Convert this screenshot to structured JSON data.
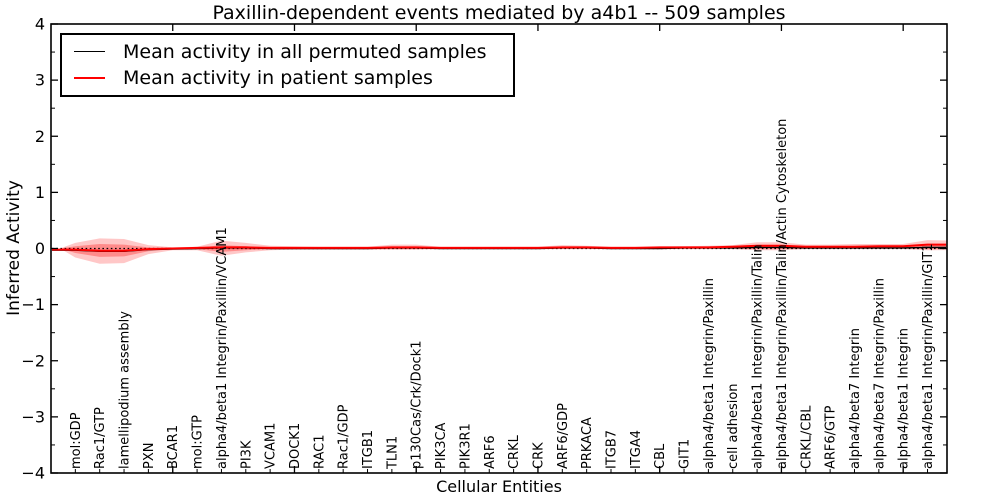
{
  "figure": {
    "background": "#ffffff"
  },
  "chart_data": {
    "type": "area",
    "variant": "violin-band-with-mean-lines",
    "title": "Paxillin-dependent events mediated by a4b1 -- 509 samples",
    "xlabel": "Cellular Entities",
    "ylabel": "Inferred Activity",
    "ylim": [
      -4,
      4
    ],
    "xlim": [
      0,
      36.8
    ],
    "yticks_major": [
      4,
      3,
      2,
      1,
      0,
      -1,
      -2,
      -3,
      -4
    ],
    "ytick_labels": [
      "4",
      "3",
      "2",
      "1",
      "0",
      "−1",
      "−2",
      "−3",
      "−4"
    ],
    "ytick_minor_step": 0.5,
    "xtick_major_step": 5,
    "grid": false,
    "legend_position": "upper left",
    "zero_line": 0,
    "categories": [
      "mol:GDP",
      "Rac1/GTP",
      "lamellipodium assembly",
      "PXN",
      "BCAR1",
      "mol:GTP",
      "alpha4/beta1 Integrin/Paxillin/VCAM1",
      "PI3K",
      "VCAM1",
      "DOCK1",
      "RAC1",
      "Rac1/GDP",
      "ITGB1",
      "TLN1",
      "p130Cas/Crk/Dock1",
      "PIK3CA",
      "PIK3R1",
      "ARF6",
      "CRKL",
      "CRK",
      "ARF6/GDP",
      "PRKACA",
      "ITGB7",
      "ITGA4",
      "CBL",
      "GIT1",
      "alpha4/beta1 Integrin/Paxillin",
      "cell adhesion",
      "alpha4/beta1 Integrin/Paxillin/Talin",
      "alpha4/beta1 Integrin/Paxillin/Talin/Actin Cytoskeleton",
      "CRKL/CBL",
      "ARF6/GTP",
      "alpha4/beta7 Integrin",
      "alpha4/beta7 Integrin/Paxillin",
      "alpha4/beta1 Integrin",
      "alpha4/beta1 Integrin/Paxillin/GIT1"
    ],
    "series": [
      {
        "name": "Mean activity in all permuted samples",
        "color": "#000000",
        "values": [
          -0.03,
          -0.05,
          -0.05,
          -0.02,
          -0.01,
          0,
          0.01,
          0.01,
          0,
          0,
          0,
          0,
          0,
          0.01,
          0.01,
          0,
          0,
          0,
          0,
          0,
          0.01,
          0.01,
          0,
          0,
          0,
          0.01,
          0.01,
          0.01,
          0.02,
          0.02,
          0.01,
          0.01,
          0.01,
          0.01,
          0.01,
          0.02
        ]
      },
      {
        "name": "Mean activity in patient samples",
        "color": "#ff0000",
        "values": [
          -0.02,
          -0.04,
          -0.04,
          -0.01,
          0,
          0.01,
          0.02,
          0.02,
          0.01,
          0.01,
          0.01,
          0.01,
          0.01,
          0.02,
          0.02,
          0.01,
          0.01,
          0.01,
          0.01,
          0.01,
          0.02,
          0.02,
          0.01,
          0.01,
          0.02,
          0.02,
          0.02,
          0.03,
          0.05,
          0.05,
          0.03,
          0.03,
          0.03,
          0.04,
          0.04,
          0.07
        ]
      }
    ],
    "band_outer": {
      "color": "#ff0000",
      "opacity": 0.22,
      "upper": [
        0.1,
        0.18,
        0.17,
        0.06,
        0.02,
        0.03,
        0.14,
        0.1,
        0.05,
        0.04,
        0.03,
        0.03,
        0.03,
        0.07,
        0.07,
        0.03,
        0.03,
        0.03,
        0.03,
        0.03,
        0.06,
        0.05,
        0.03,
        0.03,
        0.03,
        0.04,
        0.05,
        0.06,
        0.11,
        0.11,
        0.07,
        0.07,
        0.08,
        0.08,
        0.08,
        0.15
      ],
      "lower": [
        -0.16,
        -0.27,
        -0.26,
        -0.1,
        -0.03,
        -0.03,
        -0.13,
        -0.07,
        -0.03,
        -0.02,
        -0.02,
        -0.02,
        -0.02,
        -0.02,
        -0.02,
        -0.01,
        -0.01,
        -0.01,
        -0.01,
        -0.01,
        -0.01,
        -0.01,
        -0.01,
        -0.01,
        -0.01,
        -0.01,
        -0.01,
        -0.01,
        -0.03,
        -0.03,
        -0.01,
        -0.01,
        -0.01,
        -0.01,
        -0.01,
        -0.03
      ]
    },
    "band_inner": {
      "color": "#ff0000",
      "opacity": 0.3,
      "upper": [
        0.04,
        0.08,
        0.07,
        0.02,
        0.01,
        0.01,
        0.06,
        0.04,
        0.02,
        0.02,
        0.01,
        0.01,
        0.01,
        0.03,
        0.03,
        0.01,
        0.01,
        0.01,
        0.01,
        0.01,
        0.03,
        0.02,
        0.01,
        0.01,
        0.01,
        0.02,
        0.02,
        0.03,
        0.06,
        0.06,
        0.04,
        0.04,
        0.04,
        0.04,
        0.04,
        0.08
      ],
      "lower": [
        -0.08,
        -0.15,
        -0.14,
        -0.05,
        -0.01,
        -0.01,
        -0.06,
        -0.03,
        -0.01,
        -0.01,
        -0.01,
        -0.01,
        -0.01,
        -0.01,
        -0.01,
        0,
        0,
        0,
        0,
        0,
        0,
        0,
        0,
        0,
        0,
        0,
        0,
        0,
        -0.01,
        -0.01,
        0,
        0,
        0,
        0,
        0,
        -0.01
      ]
    }
  }
}
